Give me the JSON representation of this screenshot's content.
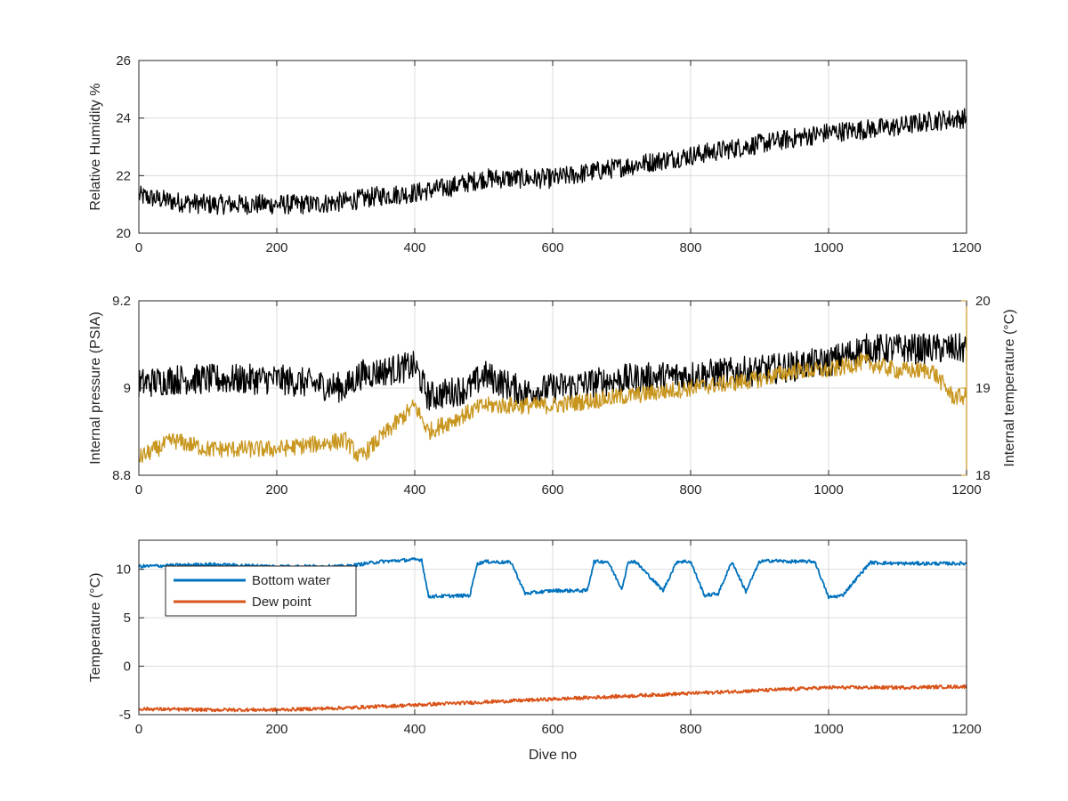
{
  "chart_data": [
    {
      "type": "line",
      "ylabel": "Relative Humidity %",
      "xlabel": "",
      "xlim": [
        0,
        1200
      ],
      "ylim": [
        20,
        26
      ],
      "xticks": [
        "0",
        "200",
        "400",
        "600",
        "800",
        "1000",
        "1200"
      ],
      "yticks": [
        "20",
        "22",
        "24",
        "26"
      ],
      "grid": true,
      "colors": {
        "series": "#000000"
      },
      "series": [
        {
          "name": "",
          "x": [
            0,
            50,
            100,
            150,
            200,
            250,
            300,
            350,
            400,
            450,
            500,
            550,
            600,
            650,
            700,
            750,
            800,
            850,
            900,
            950,
            1000,
            1050,
            1100,
            1150,
            1200
          ],
          "y": [
            21.3,
            21.1,
            21.0,
            21.0,
            21.0,
            21.0,
            21.1,
            21.3,
            21.4,
            21.6,
            21.9,
            21.9,
            21.9,
            22.1,
            22.3,
            22.5,
            22.7,
            22.9,
            23.1,
            23.3,
            23.5,
            23.6,
            23.7,
            23.9,
            24.0
          ],
          "noise": 0.35
        }
      ]
    },
    {
      "type": "line",
      "ylabel": "Internal pressure (PSIA)",
      "ylabel_right": "Internal temperature (°C)",
      "xlabel": "",
      "xlim": [
        0,
        1200
      ],
      "ylim": [
        8.8,
        9.2
      ],
      "ylim_right": [
        18,
        20
      ],
      "xticks": [
        "0",
        "200",
        "400",
        "600",
        "800",
        "1000",
        "1200"
      ],
      "yticks": [
        "8.8",
        "9",
        "9.2"
      ],
      "yticks_right": [
        "18",
        "19",
        "20"
      ],
      "grid": true,
      "colors": {
        "left": "#000000",
        "right": "#c8961e"
      },
      "series": [
        {
          "name": "",
          "axis": "left",
          "x": [
            0,
            50,
            100,
            200,
            300,
            320,
            400,
            420,
            480,
            500,
            560,
            600,
            650,
            700,
            800,
            900,
            1000,
            1050,
            1100,
            1200
          ],
          "y": [
            9.01,
            9.02,
            9.02,
            9.02,
            9.0,
            9.03,
            9.05,
            8.98,
            9.0,
            9.03,
            8.99,
            9.0,
            9.01,
            9.02,
            9.03,
            9.04,
            9.06,
            9.09,
            9.09,
            9.09
          ],
          "noise": 0.035
        },
        {
          "name": "",
          "axis": "right",
          "x": [
            0,
            50,
            100,
            200,
            300,
            320,
            400,
            420,
            500,
            600,
            700,
            800,
            900,
            950,
            1000,
            1050,
            1100,
            1150,
            1180,
            1200
          ],
          "y": [
            18.2,
            18.4,
            18.3,
            18.3,
            18.4,
            18.2,
            18.8,
            18.5,
            18.8,
            18.8,
            18.9,
            19.0,
            19.1,
            19.2,
            19.2,
            19.3,
            19.2,
            19.2,
            18.9,
            18.9
          ],
          "noise": 0.1
        }
      ]
    },
    {
      "type": "line",
      "ylabel": "Temperature (°C)",
      "xlabel": "Dive no",
      "xlim": [
        0,
        1200
      ],
      "ylim": [
        -5,
        13
      ],
      "xticks": [
        "0",
        "200",
        "400",
        "600",
        "800",
        "1000",
        "1200"
      ],
      "yticks": [
        "-5",
        "0",
        "5",
        "10"
      ],
      "grid": true,
      "legend": "top-left",
      "series": [
        {
          "name": "Bottom water",
          "color": "#0072bd",
          "x": [
            0,
            50,
            100,
            200,
            300,
            350,
            400,
            410,
            420,
            480,
            490,
            500,
            540,
            560,
            600,
            650,
            660,
            680,
            700,
            710,
            720,
            760,
            780,
            800,
            820,
            840,
            860,
            880,
            900,
            920,
            940,
            960,
            980,
            1000,
            1020,
            1060,
            1100,
            1200
          ],
          "y": [
            10.3,
            10.4,
            10.5,
            10.3,
            10.3,
            10.8,
            11.0,
            11.0,
            7.2,
            7.3,
            10.5,
            10.8,
            10.7,
            7.5,
            7.8,
            7.8,
            10.8,
            10.8,
            8.0,
            10.8,
            10.8,
            7.8,
            10.8,
            10.8,
            7.3,
            7.5,
            10.8,
            7.7,
            10.8,
            10.9,
            10.8,
            10.8,
            10.8,
            7.1,
            7.3,
            10.7,
            10.6,
            10.6
          ]
        },
        {
          "name": "Dew point",
          "color": "#d95319",
          "x": [
            0,
            100,
            200,
            300,
            400,
            500,
            600,
            700,
            800,
            900,
            1000,
            1100,
            1200
          ],
          "y": [
            -4.4,
            -4.5,
            -4.5,
            -4.3,
            -4.0,
            -3.7,
            -3.4,
            -3.1,
            -2.8,
            -2.5,
            -2.2,
            -2.2,
            -2.1
          ]
        }
      ]
    }
  ]
}
